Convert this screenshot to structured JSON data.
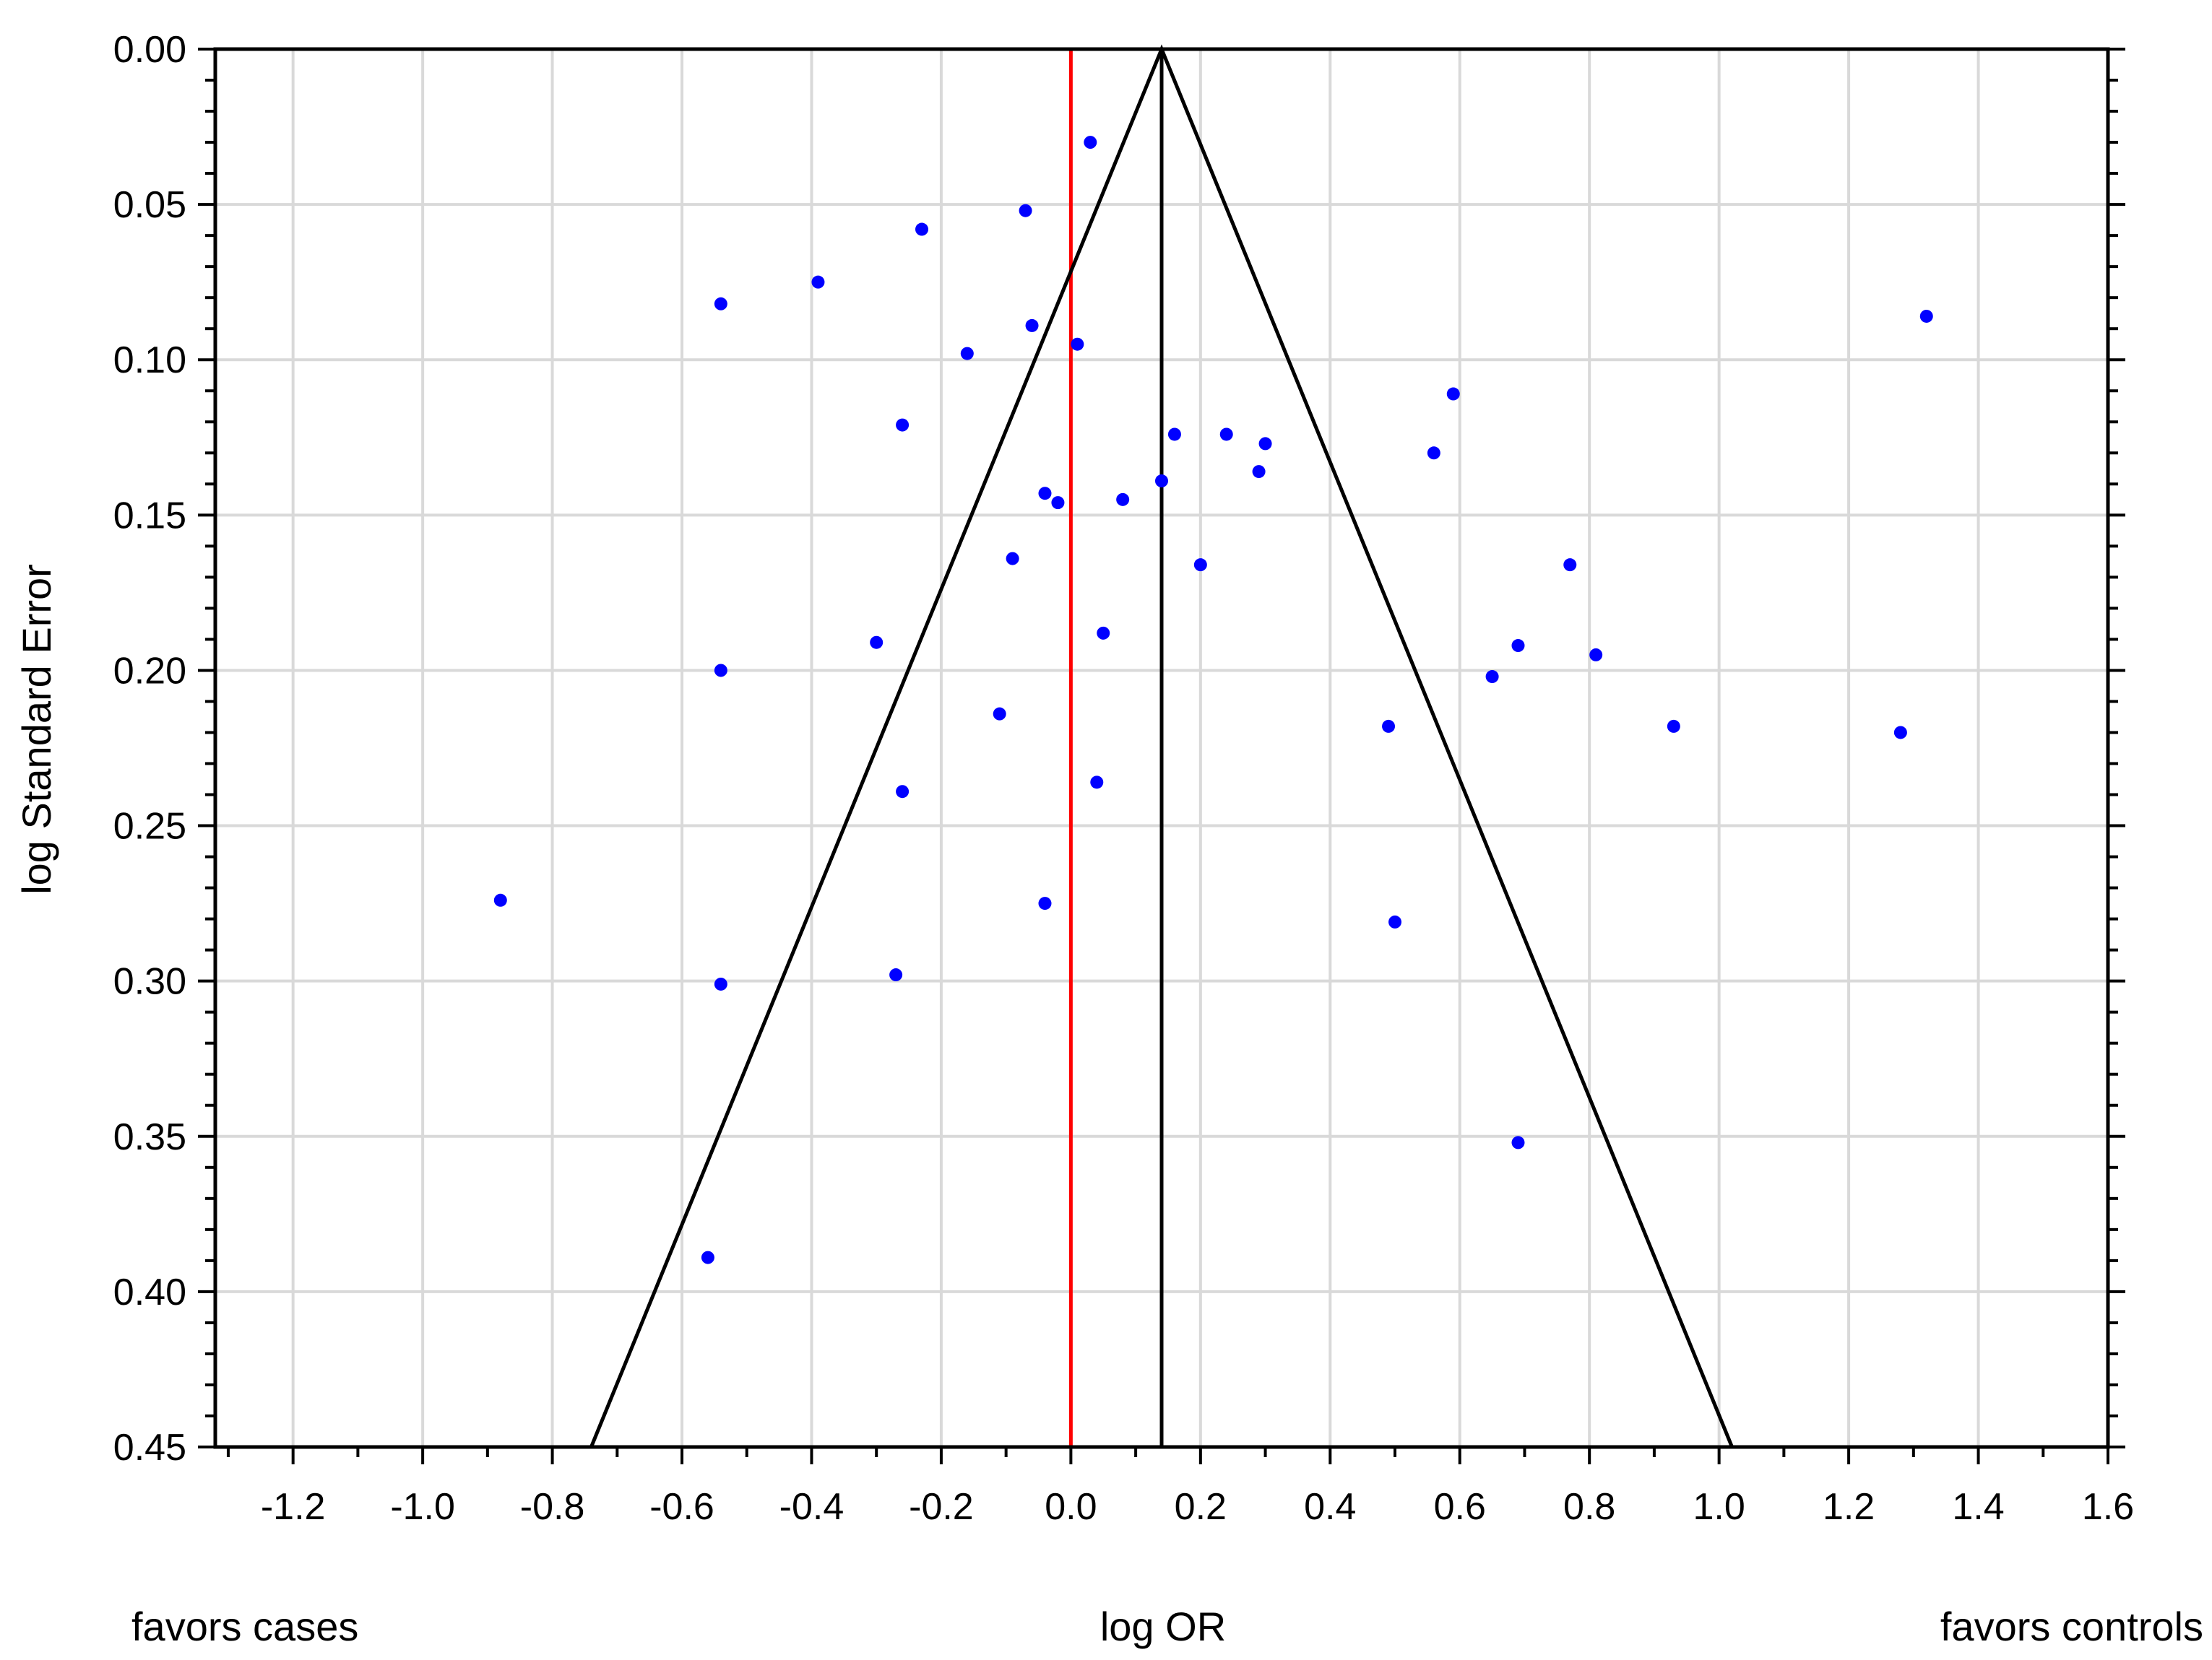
{
  "chart_data": {
    "type": "scatter",
    "title": "",
    "xlabel": "log OR",
    "ylabel": "log Standard Error",
    "left_annotation": "favors cases",
    "right_annotation": "favors controls",
    "xlim": [
      -1.32,
      1.6
    ],
    "ylim": [
      0.0,
      0.45
    ],
    "y_inverted": true,
    "grid": true,
    "x_ticks": [
      "-1.2",
      "-1.0",
      "-0.8",
      "-0.6",
      "-0.4",
      "-0.2",
      "0.0",
      "0.2",
      "0.4",
      "0.6",
      "0.8",
      "1.0",
      "1.2",
      "1.4",
      "1.6"
    ],
    "x_tick_values": [
      -1.2,
      -1.0,
      -0.8,
      -0.6,
      -0.4,
      -0.2,
      0.0,
      0.2,
      0.4,
      0.6,
      0.8,
      1.0,
      1.2,
      1.4,
      1.6
    ],
    "y_ticks": [
      "0.00",
      "0.05",
      "0.10",
      "0.15",
      "0.20",
      "0.25",
      "0.30",
      "0.35",
      "0.40",
      "0.45"
    ],
    "y_tick_values": [
      0.0,
      0.05,
      0.1,
      0.15,
      0.2,
      0.25,
      0.3,
      0.35,
      0.4,
      0.45
    ],
    "null_line_x": 0.0,
    "pooled_estimate_x": 0.14,
    "funnel": {
      "apex": [
        0.14,
        0.0
      ],
      "bottom_left": [
        -0.74,
        0.45
      ],
      "bottom_right": [
        1.02,
        0.45
      ]
    },
    "colors": {
      "points": "#0000ff",
      "null_line": "#ff0000",
      "funnel": "#000000",
      "grid": "#d9d9d9"
    },
    "points": [
      {
        "x": 0.03,
        "y": 0.03
      },
      {
        "x": -0.07,
        "y": 0.052
      },
      {
        "x": -0.23,
        "y": 0.058
      },
      {
        "x": -0.39,
        "y": 0.075
      },
      {
        "x": -0.54,
        "y": 0.082
      },
      {
        "x": 1.32,
        "y": 0.086
      },
      {
        "x": -0.06,
        "y": 0.089
      },
      {
        "x": 0.01,
        "y": 0.095
      },
      {
        "x": -0.16,
        "y": 0.098
      },
      {
        "x": 0.59,
        "y": 0.111
      },
      {
        "x": -0.26,
        "y": 0.121
      },
      {
        "x": 0.16,
        "y": 0.124
      },
      {
        "x": 0.24,
        "y": 0.124
      },
      {
        "x": 0.3,
        "y": 0.127
      },
      {
        "x": 0.56,
        "y": 0.13
      },
      {
        "x": 0.29,
        "y": 0.136
      },
      {
        "x": 0.14,
        "y": 0.139
      },
      {
        "x": -0.04,
        "y": 0.143
      },
      {
        "x": 0.08,
        "y": 0.145
      },
      {
        "x": -0.02,
        "y": 0.146
      },
      {
        "x": -0.09,
        "y": 0.164
      },
      {
        "x": 0.2,
        "y": 0.166
      },
      {
        "x": 0.77,
        "y": 0.166
      },
      {
        "x": 0.05,
        "y": 0.188
      },
      {
        "x": -0.3,
        "y": 0.191
      },
      {
        "x": 0.69,
        "y": 0.192
      },
      {
        "x": 0.81,
        "y": 0.195
      },
      {
        "x": -0.54,
        "y": 0.2
      },
      {
        "x": 0.65,
        "y": 0.202
      },
      {
        "x": -0.11,
        "y": 0.214
      },
      {
        "x": 0.49,
        "y": 0.218
      },
      {
        "x": 0.93,
        "y": 0.218
      },
      {
        "x": 1.28,
        "y": 0.22
      },
      {
        "x": 0.04,
        "y": 0.236
      },
      {
        "x": -0.26,
        "y": 0.239
      },
      {
        "x": -0.88,
        "y": 0.274
      },
      {
        "x": -0.04,
        "y": 0.275
      },
      {
        "x": 0.5,
        "y": 0.281
      },
      {
        "x": -0.27,
        "y": 0.298
      },
      {
        "x": -0.54,
        "y": 0.301
      },
      {
        "x": 0.69,
        "y": 0.352
      },
      {
        "x": -0.56,
        "y": 0.389
      }
    ]
  }
}
